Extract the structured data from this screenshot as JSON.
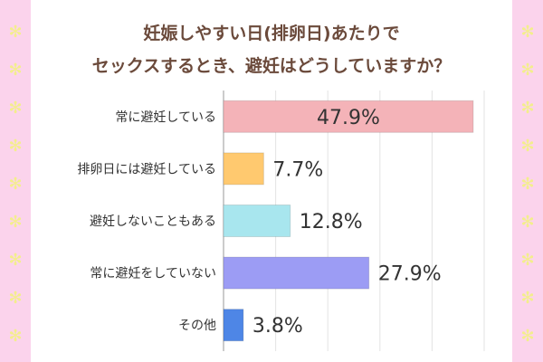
{
  "title_lines": [
    "妊娠しやすい日(排卵日)あたりで",
    "セックスするとき、避妊はどうしていますか？"
  ],
  "chart_data": {
    "type": "bar",
    "orientation": "horizontal",
    "categories": [
      "常に避妊している",
      "排卵日には避妊している",
      "避妊しないこともある",
      "常に避妊をしていない",
      "その他"
    ],
    "values": [
      47.9,
      7.7,
      12.8,
      27.9,
      3.8
    ],
    "value_labels": [
      "47.9%",
      "7.7%",
      "12.8%",
      "27.9%",
      "3.8%"
    ],
    "unit": "%",
    "xlim": [
      0,
      50
    ],
    "grid": true,
    "bar_colors": [
      "#f4b3b8",
      "#ffc96f",
      "#a8e6ee",
      "#9c9cf4",
      "#4e86e6"
    ]
  },
  "decoration": {
    "star_color": "#f3ee8c",
    "side_color": "#fbd3ec",
    "title_color": "#6b4a3b"
  }
}
